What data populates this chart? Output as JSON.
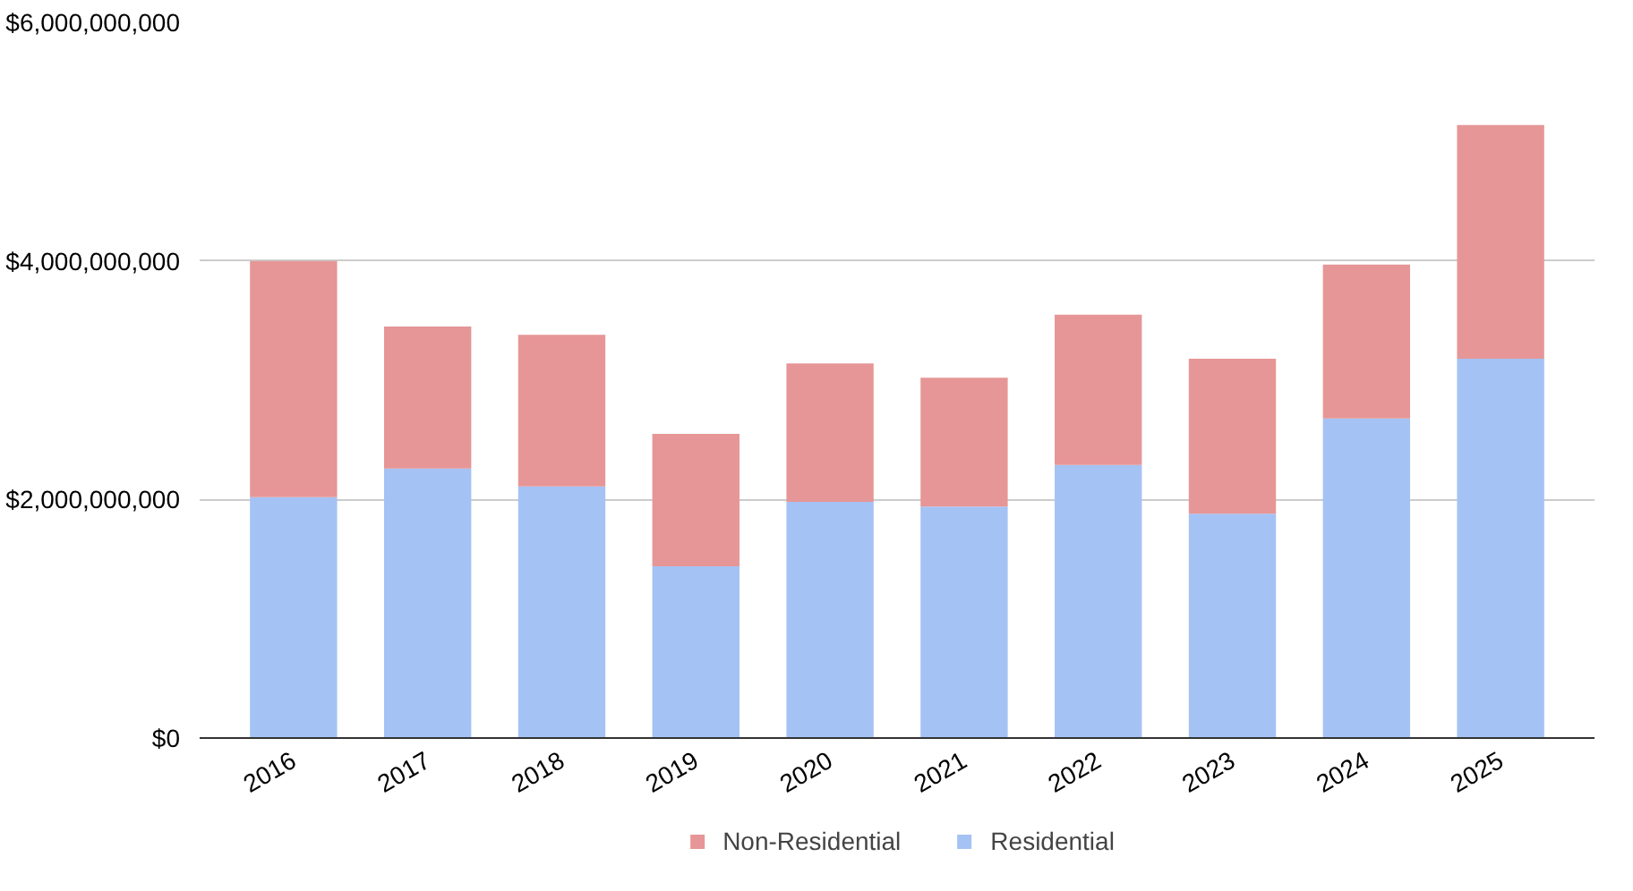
{
  "chart_data": {
    "type": "bar",
    "stacked": true,
    "categories": [
      "2016",
      "2017",
      "2018",
      "2019",
      "2020",
      "2021",
      "2022",
      "2023",
      "2024",
      "2025"
    ],
    "series": [
      {
        "name": "Residential",
        "color": "#a4c2f4",
        "values": [
          2020000000,
          2260000000,
          2110000000,
          1440000000,
          1980000000,
          1940000000,
          2290000000,
          1880000000,
          2680000000,
          3180000000
        ]
      },
      {
        "name": "Non-Residential",
        "color": "#e69696",
        "values": [
          1980000000,
          1190000000,
          1270000000,
          1110000000,
          1160000000,
          1080000000,
          1260000000,
          1300000000,
          1290000000,
          1960000000
        ]
      }
    ],
    "ylim": [
      0,
      6000000000
    ],
    "yticks": [
      {
        "value": 0,
        "label": "$0"
      },
      {
        "value": 2000000000,
        "label": "$2,000,000,000"
      },
      {
        "value": 4000000000,
        "label": "$4,000,000,000"
      },
      {
        "value": 6000000000,
        "label": "$6,000,000,000"
      }
    ],
    "grid": "y",
    "legend": "bottom"
  }
}
